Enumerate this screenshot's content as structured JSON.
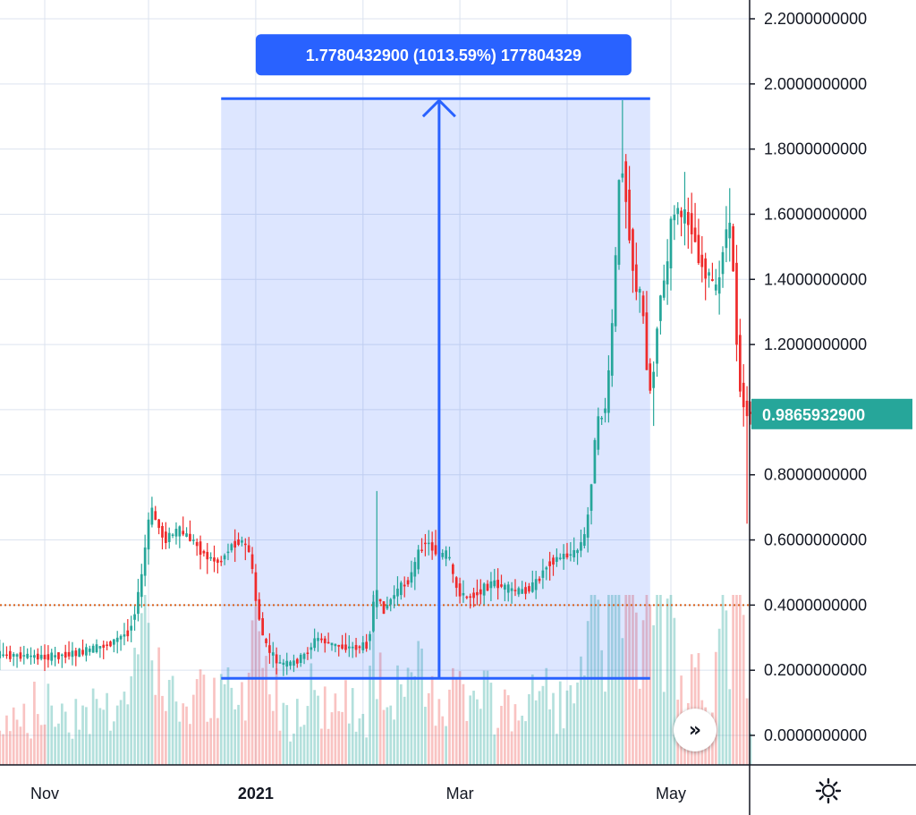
{
  "chart_data": {
    "type": "candlestick",
    "y_axis": {
      "ticks": [
        "2.2000000000",
        "2.0000000000",
        "1.8000000000",
        "1.6000000000",
        "1.4000000000",
        "1.2000000000",
        "0.8000000000",
        "0.6000000000",
        "0.4000000000",
        "0.2000000000",
        "0.0000000000"
      ],
      "ylim": [
        -0.08,
        2.25
      ],
      "position": "right"
    },
    "x_axis": {
      "labels": [
        {
          "text": "Nov",
          "date": "2020-11-01",
          "bold": false
        },
        {
          "text": "2021",
          "date": "2021-01-01",
          "bold": true
        },
        {
          "text": "Mar",
          "date": "2021-03-01",
          "bold": false
        },
        {
          "text": "May",
          "date": "2021-05-01",
          "bold": false
        }
      ],
      "xlim": [
        "2020-10-14",
        "2021-05-24"
      ]
    },
    "current_price": {
      "label": "0.9865932900",
      "value": 0.98659329,
      "color": "#26a69a"
    },
    "reference_line": {
      "value": 0.4,
      "style": "dotted",
      "color": "#d9601c"
    },
    "measure_tool": {
      "label": "1.7780432900 (1013.59%) 177804329",
      "from_price": 0.175,
      "to_price": 1.955,
      "from_date": "2020-12-22",
      "to_date": "2021-04-25",
      "arrow_date": "2021-02-23",
      "color": "#2962ff"
    },
    "colors": {
      "up": "#26a69a",
      "down": "#ef2b2b",
      "grid": "#dce3ef",
      "axis": "#131722"
    },
    "price_path": [
      [
        "2020-10-14",
        0.25
      ],
      [
        "2020-10-25",
        0.245
      ],
      [
        "2020-11-02",
        0.24
      ],
      [
        "2020-11-12",
        0.255
      ],
      [
        "2020-11-20",
        0.28
      ],
      [
        "2020-11-26",
        0.32
      ],
      [
        "2020-11-29",
        0.45
      ],
      [
        "2020-12-02",
        0.7
      ],
      [
        "2020-12-06",
        0.6
      ],
      [
        "2020-12-10",
        0.63
      ],
      [
        "2020-12-14",
        0.6
      ],
      [
        "2020-12-18",
        0.55
      ],
      [
        "2020-12-22",
        0.53
      ],
      [
        "2020-12-25",
        0.58
      ],
      [
        "2020-12-28",
        0.6
      ],
      [
        "2020-12-31",
        0.56
      ],
      [
        "2021-01-01",
        0.44
      ],
      [
        "2021-01-04",
        0.28
      ],
      [
        "2021-01-08",
        0.22
      ],
      [
        "2021-01-12",
        0.22
      ],
      [
        "2021-01-16",
        0.25
      ],
      [
        "2021-01-19",
        0.3
      ],
      [
        "2021-01-23",
        0.28
      ],
      [
        "2021-01-27",
        0.27
      ],
      [
        "2021-01-31",
        0.27
      ],
      [
        "2021-02-03",
        0.28
      ],
      [
        "2021-02-05",
        0.45
      ],
      [
        "2021-02-07",
        0.38
      ],
      [
        "2021-02-11",
        0.44
      ],
      [
        "2021-02-15",
        0.48
      ],
      [
        "2021-02-19",
        0.6
      ],
      [
        "2021-02-21",
        0.58
      ],
      [
        "2021-02-24",
        0.55
      ],
      [
        "2021-02-26",
        0.56
      ],
      [
        "2021-02-28",
        0.46
      ],
      [
        "2021-03-03",
        0.42
      ],
      [
        "2021-03-07",
        0.44
      ],
      [
        "2021-03-11",
        0.47
      ],
      [
        "2021-03-15",
        0.45
      ],
      [
        "2021-03-19",
        0.44
      ],
      [
        "2021-03-23",
        0.46
      ],
      [
        "2021-03-27",
        0.53
      ],
      [
        "2021-03-31",
        0.55
      ],
      [
        "2021-04-04",
        0.56
      ],
      [
        "2021-04-07",
        0.62
      ],
      [
        "2021-04-10",
        0.95
      ],
      [
        "2021-04-13",
        1.02
      ],
      [
        "2021-04-15",
        1.35
      ],
      [
        "2021-04-17",
        1.8
      ],
      [
        "2021-04-19",
        1.6
      ],
      [
        "2021-04-21",
        1.38
      ],
      [
        "2021-04-23",
        1.35
      ],
      [
        "2021-04-25",
        1.07
      ],
      [
        "2021-04-26",
        1.05
      ],
      [
        "2021-04-28",
        1.34
      ],
      [
        "2021-04-30",
        1.4
      ],
      [
        "2021-05-02",
        1.62
      ],
      [
        "2021-05-04",
        1.6
      ],
      [
        "2021-05-07",
        1.58
      ],
      [
        "2021-05-10",
        1.45
      ],
      [
        "2021-05-13",
        1.4
      ],
      [
        "2021-05-15",
        1.35
      ],
      [
        "2021-05-17",
        1.55
      ],
      [
        "2021-05-19",
        1.55
      ],
      [
        "2021-05-21",
        1.1
      ],
      [
        "2021-05-23",
        0.99
      ]
    ],
    "spikes": [
      [
        "2021-02-05",
        0.75
      ],
      [
        "2021-04-17",
        1.95
      ],
      [
        "2021-05-05",
        1.73
      ],
      [
        "2021-05-18",
        1.68
      ],
      [
        "2021-05-23",
        0.65
      ],
      [
        "2021-04-26",
        0.95
      ]
    ]
  },
  "controls": {
    "scroll_icon": "double-chevron-right-icon",
    "scroll_label": "»",
    "settings_icon": "gear-icon"
  }
}
